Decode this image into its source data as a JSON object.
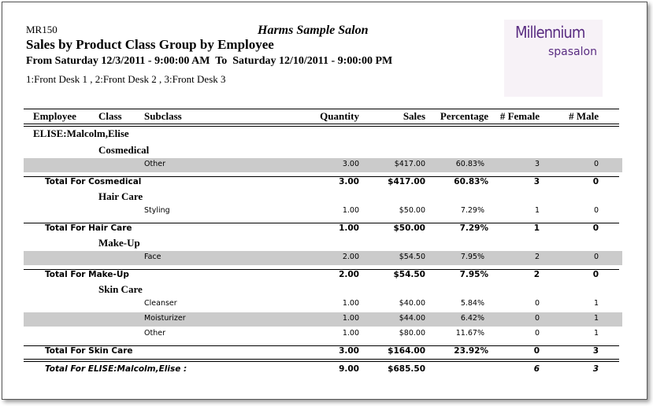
{
  "header": {
    "report_id": "MR150",
    "salon": "Harms Sample Salon",
    "title": "Sales by Product Class Group by Employee",
    "date_range": "From Saturday 12/3/2011 - 9:00:00 AM  To  Saturday 12/10/2011 - 9:00:00 PM",
    "stations": "1:Front Desk 1 , 2:Front Desk 2 , 3:Front Desk 3",
    "logo": {
      "brand": "Millennium",
      "sub": "spasalon"
    }
  },
  "table": {
    "columns": [
      "Employee",
      "Class",
      "Subclass",
      "Quantity",
      "Sales",
      "Percentage",
      "# Female",
      "# Male"
    ],
    "employee": "ELISE:Malcolm,Elise",
    "groups": [
      {
        "class": "Cosmedical",
        "rows": [
          [
            "Other",
            "3.00",
            "$417.00",
            "60.83%",
            "3",
            "0"
          ]
        ],
        "total": [
          "Total For Cosmedical",
          "3.00",
          "$417.00",
          "60.83%",
          "3",
          "0"
        ]
      },
      {
        "class": "Hair Care",
        "rows": [
          [
            "Styling",
            "1.00",
            "$50.00",
            "7.29%",
            "1",
            "0"
          ]
        ],
        "total": [
          "Total For Hair Care",
          "1.00",
          "$50.00",
          "7.29%",
          "1",
          "0"
        ]
      },
      {
        "class": "Make-Up",
        "rows": [
          [
            "Face",
            "2.00",
            "$54.50",
            "7.95%",
            "2",
            "0"
          ]
        ],
        "total": [
          "Total For Make-Up",
          "2.00",
          "$54.50",
          "7.95%",
          "2",
          "0"
        ]
      },
      {
        "class": "Skin Care",
        "rows": [
          [
            "Cleanser",
            "1.00",
            "$40.00",
            "5.84%",
            "0",
            "1"
          ],
          [
            "Moisturizer",
            "1.00",
            "$44.00",
            "6.42%",
            "0",
            "1"
          ],
          [
            "Other",
            "1.00",
            "$80.00",
            "11.67%",
            "0",
            "1"
          ]
        ],
        "total": [
          "Total For Skin Care",
          "3.00",
          "$164.00",
          "23.92%",
          "0",
          "3"
        ]
      }
    ],
    "grand_total": {
      "label": "Total For ELISE:Malcolm,Elise :",
      "quantity": "9.00",
      "sales": "$685.50",
      "female": "6",
      "male": "3"
    }
  }
}
